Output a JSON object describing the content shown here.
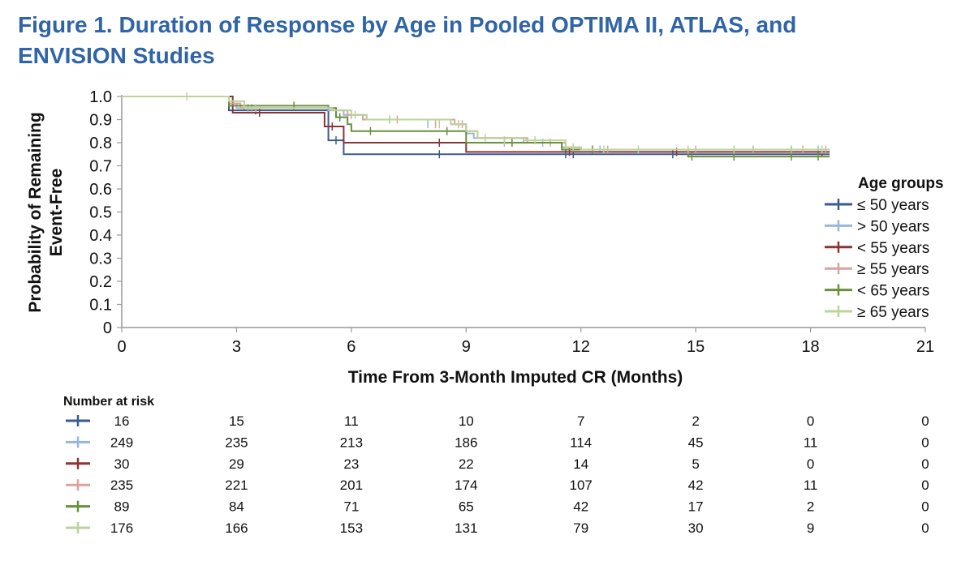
{
  "title_line1": "Figure 1. Duration of Response by Age in Pooled OPTIMA II, ATLAS, and",
  "title_line2": "ENVISION Studies",
  "chart_data": {
    "type": "line",
    "subtype": "kaplan-meier",
    "xlabel": "Time From 3-Month Imputed CR (Months)",
    "ylabel_lines": [
      "Probability of Remaining",
      "Event-Free"
    ],
    "xlim": [
      0,
      21
    ],
    "ylim": [
      0,
      1.0
    ],
    "xticks": [
      0,
      3,
      6,
      9,
      12,
      15,
      18,
      21
    ],
    "yticks": [
      0,
      0.1,
      0.2,
      0.3,
      0.4,
      0.5,
      0.6,
      0.7,
      0.8,
      0.9,
      1.0
    ],
    "ytick_labels": [
      "0",
      "0.1",
      "0.2",
      "0.3",
      "0.4",
      "0.5",
      "0.6",
      "0.7",
      "0.8",
      "0.9",
      "1.0"
    ],
    "grid": false,
    "legend": {
      "title": "Age groups",
      "position": "right"
    },
    "series": [
      {
        "name": "≤ 50 years",
        "color": "#3b5a93",
        "steps": [
          [
            0,
            1.0
          ],
          [
            2.8,
            0.94
          ],
          [
            5.4,
            0.81
          ],
          [
            5.8,
            0.75
          ],
          [
            14.5,
            0.75
          ],
          [
            18.5,
            0.75
          ]
        ],
        "censors": [
          [
            3.5,
            0.94
          ],
          [
            5.6,
            0.81
          ],
          [
            8.3,
            0.75
          ],
          [
            11.6,
            0.75
          ],
          [
            11.8,
            0.75
          ],
          [
            14.4,
            0.75
          ]
        ]
      },
      {
        "name": "> 50 years",
        "color": "#9ab6d9",
        "steps": [
          [
            0,
            1.0
          ],
          [
            2.8,
            0.97
          ],
          [
            3.0,
            0.95
          ],
          [
            5.4,
            0.94
          ],
          [
            5.8,
            0.92
          ],
          [
            6.4,
            0.9
          ],
          [
            8.6,
            0.88
          ],
          [
            9.0,
            0.84
          ],
          [
            9.2,
            0.82
          ],
          [
            10.5,
            0.8
          ],
          [
            11.5,
            0.78
          ],
          [
            12.0,
            0.77
          ],
          [
            18.5,
            0.77
          ]
        ],
        "censors": [
          [
            3.3,
            0.95
          ],
          [
            5.9,
            0.92
          ],
          [
            7.0,
            0.9
          ],
          [
            8.0,
            0.88
          ],
          [
            8.8,
            0.88
          ],
          [
            10.0,
            0.8
          ],
          [
            11.0,
            0.8
          ],
          [
            12.5,
            0.77
          ],
          [
            14.8,
            0.77
          ],
          [
            16.0,
            0.77
          ],
          [
            17.5,
            0.77
          ],
          [
            18.2,
            0.77
          ]
        ]
      },
      {
        "name": "< 55 years",
        "color": "#8a3536",
        "steps": [
          [
            0,
            1.0
          ],
          [
            2.9,
            0.93
          ],
          [
            5.3,
            0.87
          ],
          [
            5.8,
            0.8
          ],
          [
            9.0,
            0.76
          ],
          [
            18.5,
            0.76
          ]
        ],
        "censors": [
          [
            3.6,
            0.93
          ],
          [
            5.5,
            0.87
          ],
          [
            8.3,
            0.8
          ],
          [
            11.7,
            0.76
          ],
          [
            14.5,
            0.76
          ],
          [
            17.5,
            0.76
          ],
          [
            18.3,
            0.76
          ]
        ]
      },
      {
        "name": "≥ 55 years",
        "color": "#d9a39e",
        "steps": [
          [
            0,
            1.0
          ],
          [
            2.8,
            0.97
          ],
          [
            3.1,
            0.95
          ],
          [
            5.5,
            0.94
          ],
          [
            5.9,
            0.92
          ],
          [
            6.3,
            0.9
          ],
          [
            8.7,
            0.88
          ],
          [
            9.0,
            0.85
          ],
          [
            9.3,
            0.82
          ],
          [
            10.6,
            0.8
          ],
          [
            11.6,
            0.78
          ],
          [
            12.0,
            0.77
          ],
          [
            18.5,
            0.77
          ]
        ],
        "censors": [
          [
            3.4,
            0.95
          ],
          [
            6.0,
            0.92
          ],
          [
            7.2,
            0.9
          ],
          [
            8.2,
            0.88
          ],
          [
            8.9,
            0.88
          ],
          [
            10.2,
            0.8
          ],
          [
            11.2,
            0.8
          ],
          [
            12.7,
            0.77
          ],
          [
            15.0,
            0.77
          ],
          [
            16.5,
            0.77
          ],
          [
            17.8,
            0.77
          ],
          [
            18.4,
            0.77
          ]
        ]
      },
      {
        "name": "< 65 years",
        "color": "#6b8f3c",
        "steps": [
          [
            0,
            1.0
          ],
          [
            2.8,
            0.96
          ],
          [
            5.4,
            0.95
          ],
          [
            5.6,
            0.91
          ],
          [
            5.9,
            0.88
          ],
          [
            6.0,
            0.85
          ],
          [
            7.0,
            0.85
          ],
          [
            9.0,
            0.8
          ],
          [
            11.5,
            0.77
          ],
          [
            14.8,
            0.74
          ],
          [
            18.5,
            0.74
          ]
        ],
        "censors": [
          [
            3.2,
            0.96
          ],
          [
            4.5,
            0.96
          ],
          [
            5.7,
            0.91
          ],
          [
            6.5,
            0.85
          ],
          [
            8.5,
            0.85
          ],
          [
            10.2,
            0.8
          ],
          [
            12.3,
            0.77
          ],
          [
            14.9,
            0.74
          ],
          [
            16.0,
            0.74
          ],
          [
            17.5,
            0.74
          ],
          [
            18.2,
            0.74
          ]
        ]
      },
      {
        "name": "≥ 65 years",
        "color": "#bcd39a",
        "steps": [
          [
            0,
            1.0
          ],
          [
            2.8,
            0.98
          ],
          [
            3.2,
            0.95
          ],
          [
            5.5,
            0.94
          ],
          [
            6.0,
            0.92
          ],
          [
            6.4,
            0.9
          ],
          [
            8.6,
            0.88
          ],
          [
            9.0,
            0.85
          ],
          [
            9.3,
            0.82
          ],
          [
            10.5,
            0.81
          ],
          [
            11.6,
            0.78
          ],
          [
            12.0,
            0.77
          ],
          [
            18.5,
            0.77
          ]
        ],
        "censors": [
          [
            1.7,
            1.0
          ],
          [
            3.5,
            0.95
          ],
          [
            6.1,
            0.92
          ],
          [
            7.0,
            0.9
          ],
          [
            8.3,
            0.88
          ],
          [
            8.8,
            0.88
          ],
          [
            9.5,
            0.82
          ],
          [
            10.0,
            0.81
          ],
          [
            10.8,
            0.81
          ],
          [
            11.8,
            0.78
          ],
          [
            12.6,
            0.77
          ],
          [
            13.5,
            0.77
          ],
          [
            14.8,
            0.77
          ],
          [
            16.0,
            0.77
          ],
          [
            17.5,
            0.77
          ],
          [
            18.3,
            0.77
          ]
        ]
      }
    ],
    "number_at_risk": {
      "title": "Number at risk",
      "rows": [
        [
          16,
          15,
          11,
          10,
          7,
          2,
          0,
          0
        ],
        [
          249,
          235,
          213,
          186,
          114,
          45,
          11,
          0
        ],
        [
          30,
          29,
          23,
          22,
          14,
          5,
          0,
          0
        ],
        [
          235,
          221,
          201,
          174,
          107,
          42,
          11,
          0
        ],
        [
          89,
          84,
          71,
          65,
          42,
          17,
          2,
          0
        ],
        [
          176,
          166,
          153,
          131,
          79,
          30,
          9,
          0
        ]
      ]
    }
  }
}
